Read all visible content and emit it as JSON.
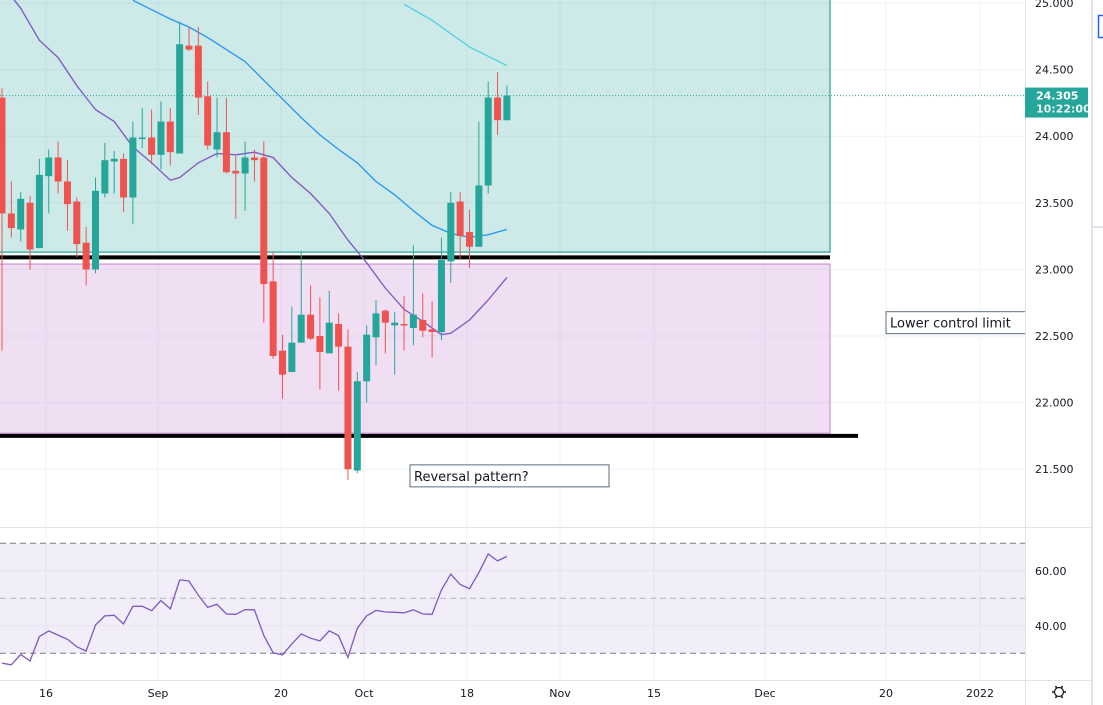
{
  "chart_data": {
    "type": "candlestick",
    "colors": {
      "up": "#26a69a",
      "down": "#ef5350",
      "ma_fast": "#7e57c2",
      "ma_mid": "#2196f3",
      "ma_slow": "#4dd0e1",
      "rsi": "#7e57c2",
      "upper_zone": "#26a69a",
      "lower_zone": "#ce93d8",
      "level_line": "#000000"
    },
    "candle_fields": [
      "date",
      "open",
      "high",
      "low",
      "close"
    ],
    "candles": [
      [
        "2021-08-09",
        24.29,
        24.36,
        22.39,
        23.42
      ],
      [
        "2021-08-10",
        23.42,
        23.66,
        23.24,
        23.31
      ],
      [
        "2021-08-11",
        23.3,
        23.58,
        23.21,
        23.53
      ],
      [
        "2021-08-12",
        23.5,
        23.55,
        23.0,
        23.15
      ],
      [
        "2021-08-13",
        23.16,
        23.83,
        23.16,
        23.71
      ],
      [
        "2021-08-16",
        23.7,
        23.9,
        23.42,
        23.84
      ],
      [
        "2021-08-17",
        23.84,
        23.96,
        23.57,
        23.66
      ],
      [
        "2021-08-18",
        23.66,
        23.82,
        23.29,
        23.49
      ],
      [
        "2021-08-19",
        23.51,
        23.54,
        23.09,
        23.19
      ],
      [
        "2021-08-20",
        23.2,
        23.32,
        22.88,
        23.0
      ],
      [
        "2021-08-23",
        23.0,
        23.69,
        22.97,
        23.59
      ],
      [
        "2021-08-24",
        23.57,
        23.95,
        23.54,
        23.82
      ],
      [
        "2021-08-25",
        23.81,
        23.89,
        23.57,
        23.83
      ],
      [
        "2021-08-26",
        23.83,
        23.87,
        23.43,
        23.54
      ],
      [
        "2021-08-27",
        23.54,
        24.11,
        23.34,
        23.99
      ],
      [
        "2021-08-30",
        23.98,
        24.21,
        23.91,
        23.99
      ],
      [
        "2021-08-31",
        23.99,
        24.2,
        23.79,
        23.86
      ],
      [
        "2021-09-01",
        23.86,
        24.26,
        23.75,
        24.11
      ],
      [
        "2021-09-02",
        24.11,
        24.21,
        23.78,
        23.88
      ],
      [
        "2021-09-03",
        23.87,
        24.86,
        23.87,
        24.69
      ],
      [
        "2021-09-06",
        24.68,
        24.82,
        24.64,
        24.65
      ],
      [
        "2021-09-07",
        24.68,
        24.82,
        24.16,
        24.29
      ],
      [
        "2021-09-08",
        24.3,
        24.41,
        23.9,
        23.93
      ],
      [
        "2021-09-09",
        23.9,
        24.29,
        23.84,
        24.03
      ],
      [
        "2021-09-10",
        24.03,
        24.29,
        23.72,
        23.73
      ],
      [
        "2021-09-13",
        23.74,
        23.85,
        23.38,
        23.72
      ],
      [
        "2021-09-14",
        23.72,
        23.96,
        23.44,
        23.84
      ],
      [
        "2021-09-15",
        23.84,
        23.9,
        23.66,
        23.82
      ],
      [
        "2021-09-16",
        23.84,
        23.96,
        22.6,
        22.89
      ],
      [
        "2021-09-17",
        22.91,
        23.13,
        22.33,
        22.35
      ],
      [
        "2021-09-20",
        22.39,
        22.51,
        22.03,
        22.21
      ],
      [
        "2021-09-21",
        22.23,
        22.72,
        22.23,
        22.45
      ],
      [
        "2021-09-22",
        22.45,
        23.14,
        22.45,
        22.66
      ],
      [
        "2021-09-23",
        22.66,
        22.88,
        22.47,
        22.48
      ],
      [
        "2021-09-24",
        22.5,
        22.79,
        22.1,
        22.38
      ],
      [
        "2021-09-27",
        22.37,
        22.84,
        22.37,
        22.6
      ],
      [
        "2021-09-28",
        22.59,
        22.67,
        22.09,
        22.42
      ],
      [
        "2021-09-29",
        22.42,
        22.55,
        21.42,
        21.5
      ],
      [
        "2021-09-30",
        21.49,
        22.23,
        21.47,
        22.16
      ],
      [
        "2021-10-01",
        22.16,
        22.58,
        22.0,
        22.51
      ],
      [
        "2021-10-04",
        22.49,
        22.77,
        22.28,
        22.67
      ],
      [
        "2021-10-05",
        22.69,
        22.7,
        22.37,
        22.6
      ],
      [
        "2021-10-06",
        22.58,
        22.68,
        22.21,
        22.6
      ],
      [
        "2021-10-07",
        22.59,
        22.8,
        22.39,
        22.58
      ],
      [
        "2021-10-08",
        22.56,
        23.18,
        22.43,
        22.66
      ],
      [
        "2021-10-11",
        22.62,
        22.82,
        22.49,
        22.54
      ],
      [
        "2021-10-12",
        22.55,
        22.76,
        22.34,
        22.53
      ],
      [
        "2021-10-13",
        22.53,
        23.24,
        22.47,
        23.07
      ],
      [
        "2021-10-14",
        23.06,
        23.58,
        22.9,
        23.5
      ],
      [
        "2021-10-15",
        23.51,
        23.58,
        23.07,
        23.25
      ],
      [
        "2021-10-18",
        23.28,
        23.45,
        23.01,
        23.17
      ],
      [
        "2021-10-19",
        23.17,
        24.11,
        23.17,
        23.63
      ],
      [
        "2021-10-20",
        23.63,
        24.41,
        23.57,
        24.29
      ],
      [
        "2021-10-21",
        24.29,
        24.48,
        24.01,
        24.12
      ],
      [
        "2021-10-22",
        24.12,
        24.38,
        24.12,
        24.305
      ]
    ],
    "moving_averages": [
      {
        "key": "ma_fast",
        "points": [
          [
            "2021-08-10",
            25.05
          ],
          [
            "2021-08-11",
            24.96
          ],
          [
            "2021-08-13",
            24.72
          ],
          [
            "2021-08-17",
            24.59
          ],
          [
            "2021-08-19",
            24.38
          ],
          [
            "2021-08-23",
            24.2
          ],
          [
            "2021-08-25",
            24.11
          ],
          [
            "2021-08-27",
            23.92
          ],
          [
            "2021-08-31",
            23.8
          ],
          [
            "2021-09-02",
            23.67
          ],
          [
            "2021-09-03",
            23.69
          ],
          [
            "2021-09-07",
            23.8
          ],
          [
            "2021-09-09",
            23.87
          ],
          [
            "2021-09-13",
            23.86
          ],
          [
            "2021-09-15",
            23.88
          ],
          [
            "2021-09-17",
            23.84
          ],
          [
            "2021-09-21",
            23.69
          ],
          [
            "2021-09-23",
            23.57
          ],
          [
            "2021-09-27",
            23.42
          ],
          [
            "2021-09-29",
            23.22
          ],
          [
            "2021-10-01",
            23.05
          ],
          [
            "2021-10-05",
            22.86
          ],
          [
            "2021-10-07",
            22.7
          ],
          [
            "2021-10-11",
            22.61
          ],
          [
            "2021-10-13",
            22.51
          ],
          [
            "2021-10-14",
            22.52
          ],
          [
            "2021-10-18",
            22.62
          ],
          [
            "2021-10-20",
            22.77
          ],
          [
            "2021-10-22",
            22.94
          ]
        ]
      },
      {
        "key": "ma_mid",
        "points": [
          [
            "2021-08-27",
            25.02
          ],
          [
            "2021-08-31",
            24.95
          ],
          [
            "2021-09-02",
            24.88
          ],
          [
            "2021-09-06",
            24.82
          ],
          [
            "2021-09-08",
            24.74
          ],
          [
            "2021-09-10",
            24.65
          ],
          [
            "2021-09-14",
            24.56
          ],
          [
            "2021-09-16",
            24.42
          ],
          [
            "2021-09-20",
            24.28
          ],
          [
            "2021-09-22",
            24.14
          ],
          [
            "2021-09-24",
            24.01
          ],
          [
            "2021-09-28",
            23.9
          ],
          [
            "2021-09-30",
            23.8
          ],
          [
            "2021-10-04",
            23.66
          ],
          [
            "2021-10-06",
            23.56
          ],
          [
            "2021-10-08",
            23.44
          ],
          [
            "2021-10-12",
            23.33
          ],
          [
            "2021-10-14",
            23.27
          ],
          [
            "2021-10-18",
            23.24
          ],
          [
            "2021-10-20",
            23.26
          ],
          [
            "2021-10-22",
            23.3
          ]
        ]
      },
      {
        "key": "ma_slow",
        "points": [
          [
            "2021-10-07",
            24.99
          ],
          [
            "2021-10-12",
            24.87
          ],
          [
            "2021-10-18",
            24.67
          ],
          [
            "2021-10-22",
            24.53
          ]
        ]
      }
    ],
    "rsi": {
      "values": [
        26.4,
        25.8,
        29.6,
        27.2,
        36.1,
        38.1,
        36.6,
        35.1,
        32.4,
        30.8,
        40.3,
        43.6,
        43.8,
        40.7,
        47.1,
        47.1,
        45.5,
        49.2,
        46.2,
        56.7,
        56.3,
        51.1,
        46.7,
        47.8,
        44.3,
        44.2,
        45.9,
        45.8,
        36.5,
        30.2,
        29.4,
        33.4,
        37.0,
        35.5,
        34.5,
        38.2,
        36.4,
        28.5,
        39.1,
        43.6,
        45.6,
        45.0,
        44.9,
        44.7,
        45.8,
        44.3,
        44.2,
        53.0,
        58.8,
        55.0,
        53.5,
        59.3,
        66.1,
        63.6,
        65.2
      ],
      "upper_band": 70,
      "middle_band": 50,
      "lower_band": 30,
      "tick_labels": [
        "60.00",
        "40.00"
      ],
      "ticks": [
        60,
        40
      ]
    },
    "drawings": {
      "upper_zone": {
        "top": 25.2,
        "bottom": 23.13
      },
      "lower_zone": {
        "top": 23.04,
        "bottom": 21.77
      },
      "level_lines": [
        23.09,
        21.75
      ],
      "labels": [
        {
          "text": "Lower control limit",
          "price": 22.6
        },
        {
          "text": "Reversal pattern?",
          "price": 21.45
        }
      ]
    },
    "price_axis": {
      "ticks": [
        25.0,
        24.5,
        24.0,
        23.5,
        23.0,
        22.5,
        22.0,
        21.5
      ],
      "tick_labels": [
        "25.000",
        "24.500",
        "24.000",
        "23.500",
        "23.000",
        "22.500",
        "22.000",
        "21.500"
      ]
    },
    "time_axis": {
      "tick_labels": [
        "16",
        "Sep",
        "20",
        "Oct",
        "18",
        "Nov",
        "15",
        "Dec",
        "20",
        "2022"
      ]
    },
    "last_price": {
      "value": "24.305",
      "countdown": "10:22:00"
    },
    "grid": true
  },
  "toolbar": {
    "settings_icon": "gear-icon"
  }
}
